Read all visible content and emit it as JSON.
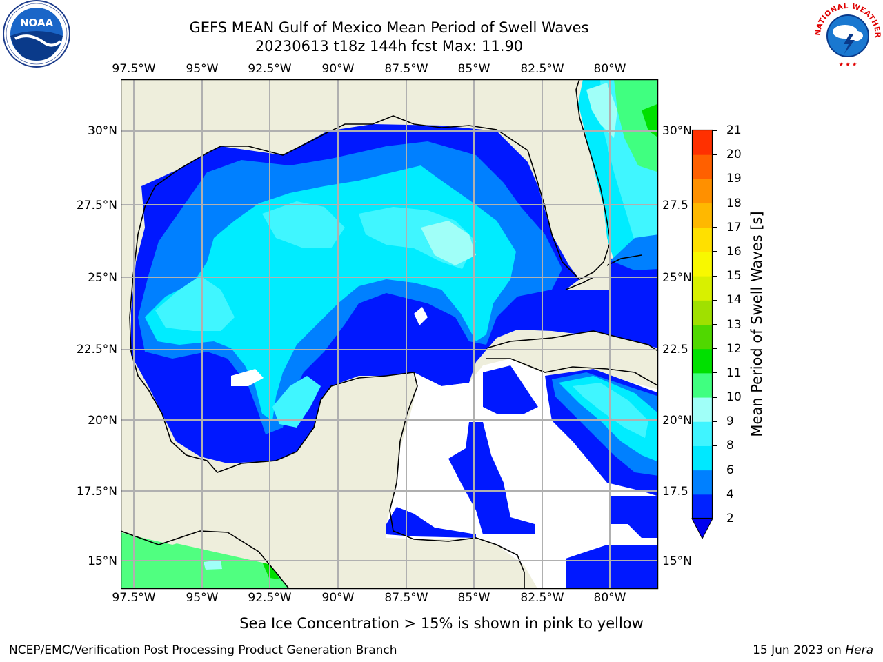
{
  "title": {
    "line1": "GEFS MEAN Gulf of Mexico Mean Period of Swell Waves",
    "line2": "20230613 t18z 144h fcst   Max: 11.90"
  },
  "logos": {
    "noaa_text": "NOAA",
    "nws_text": "NATIONAL WEATHER SERVICE"
  },
  "axes": {
    "lon_labels": [
      "97.5°W",
      "95°W",
      "92.5°W",
      "90°W",
      "87.5°W",
      "85°W",
      "82.5°W",
      "80°W"
    ],
    "lat_labels_left": [
      "30°N",
      "27.5°N",
      "25°N",
      "22.5°N",
      "20°N",
      "17.5°N",
      "15°N"
    ],
    "lat_labels_right": [
      "30°N",
      "27.5",
      "25°N",
      "22.5",
      "20°N",
      "17.5",
      "15°N"
    ]
  },
  "colorbar": {
    "label": "Mean Period of Swell Waves [s]",
    "ticks": [
      "2",
      "4",
      "6",
      "8",
      "9",
      "10",
      "11",
      "12",
      "13",
      "14",
      "15",
      "16",
      "17",
      "18",
      "19",
      "20",
      "21"
    ],
    "colors": [
      "#0022ff",
      "#0080ff",
      "#00e8ff",
      "#40f4ff",
      "#a0fff8",
      "#40ff80",
      "#00e000",
      "#50d800",
      "#a0e000",
      "#d8f000",
      "#f8f800",
      "#ffe000",
      "#ffb800",
      "#ff9000",
      "#ff6000",
      "#ff3000",
      "#ff0000"
    ],
    "extend_color": "#0000ee"
  },
  "note": "Sea Ice Concentration > 15% is shown in pink to yellow",
  "footer": {
    "left": "NCEP/EMC/Verification Post Processing Product Generation Branch",
    "right_date": "15 Jun 2023 on ",
    "right_machine": "Hera"
  }
}
